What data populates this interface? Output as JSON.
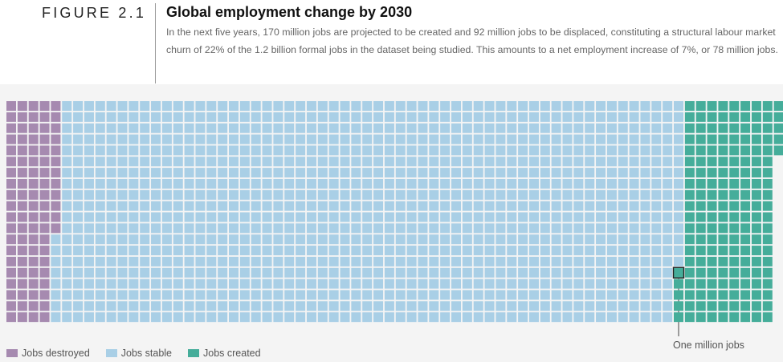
{
  "figure": {
    "label": "FIGURE 2.1",
    "title": "Global employment change by 2030",
    "subtitle": "In the next five years, 170 million jobs are projected to be created and 92 million jobs to be displaced, constituting a structural labour market churn of 22% of the 1.2 billion formal jobs in the dataset being studied. This amounts to a net employment increase of 7%, or 78 million jobs."
  },
  "chart_data": {
    "type": "waffle",
    "unit_label": "One million jobs",
    "rows": 20,
    "series": [
      {
        "name": "Jobs destroyed",
        "values": [
          92
        ],
        "color": "#a68ab0"
      },
      {
        "name": "Jobs stable",
        "values": [
          1123
        ],
        "color": "#a9cfe6"
      },
      {
        "name": "Jobs created",
        "values": [
          170
        ],
        "color": "#45ad9a"
      }
    ]
  },
  "legend": [
    {
      "label": "Jobs destroyed",
      "color": "#a68ab0"
    },
    {
      "label": "Jobs stable",
      "color": "#a9cfe6"
    },
    {
      "label": "Jobs created",
      "color": "#45ad9a"
    }
  ],
  "annotation": {
    "text": "One million jobs"
  }
}
